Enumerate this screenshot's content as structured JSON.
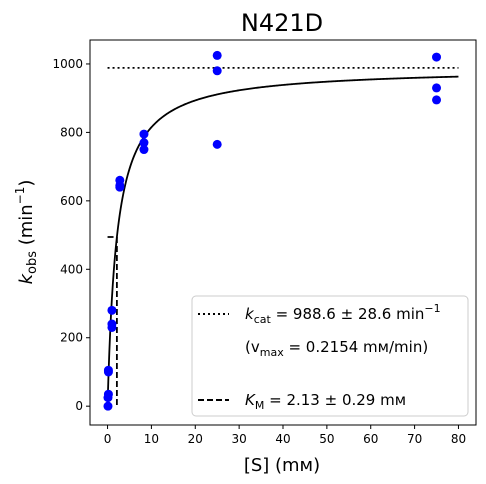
{
  "chart_data": {
    "type": "scatter",
    "title": "N421D",
    "xlabel": "[S] (mм)",
    "ylabel_main": "k",
    "ylabel_sub": "obs",
    "ylabel_unit_pre": " (min",
    "ylabel_unit_sup": "−1",
    "ylabel_unit_post": ")",
    "xlim": [
      -4,
      84
    ],
    "ylim": [
      -55,
      1070
    ],
    "xticks": [
      0,
      10,
      20,
      30,
      40,
      50,
      60,
      70,
      80
    ],
    "yticks": [
      0,
      200,
      400,
      600,
      800,
      1000
    ],
    "grid": false,
    "legend_position": "lower-right",
    "colors": {
      "points": "#0000ff",
      "fit": "#000000"
    },
    "series": [
      {
        "type": "scatter",
        "x": [
          0.1,
          0.1,
          0.2,
          0.2,
          0.2,
          1.0,
          1.0,
          1.0,
          2.8,
          2.8,
          2.8,
          8.3,
          8.3,
          8.3,
          25.0,
          25.0,
          25.0,
          75.0,
          75.0,
          75.0
        ],
        "y": [
          0,
          25,
          35,
          100,
          105,
          280,
          240,
          230,
          660,
          645,
          640,
          795,
          770,
          750,
          1025,
          980,
          765,
          1020,
          930,
          895
        ]
      }
    ],
    "fit": {
      "kcat": 988.6,
      "km": 2.13,
      "x_max": 80
    },
    "reference_lines": {
      "kcat_x_range": [
        0,
        80
      ],
      "km_half_y": 494.3,
      "km_horizontal_x_range": [
        0,
        2.13
      ]
    },
    "legend": {
      "kcat": {
        "label": "k",
        "sub": "cat",
        "value": " = 988.6 ± 28.6 min",
        "sup": "−1"
      },
      "vmax": {
        "open": "(v",
        "sub": "max",
        "value": " = 0.2154 mм/min)"
      },
      "km": {
        "label": "K",
        "sub": "M",
        "value": " = 2.13 ± 0.29 mм"
      }
    }
  }
}
